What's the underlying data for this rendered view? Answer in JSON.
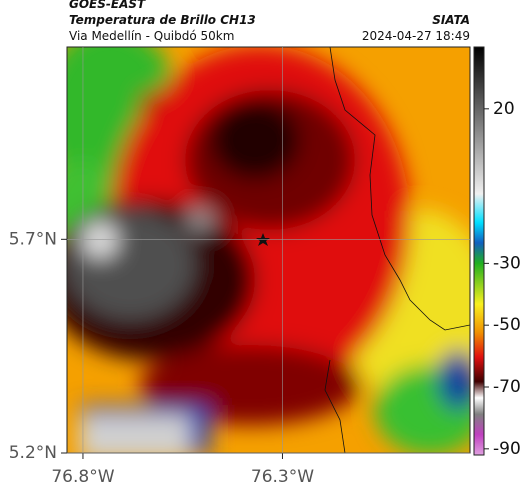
{
  "header": {
    "title": "GOES-EAST",
    "subtitle": "Temperatura de Brillo CH13",
    "caption": "Via Medellín - Quibdó 50km",
    "source": "SIATA",
    "timestamp": "2024-04-27 18:49"
  },
  "map": {
    "xlim": [
      -76.84,
      -75.83
    ],
    "ylim": [
      5.2,
      6.15
    ],
    "xticks": [
      {
        "value": -76.8,
        "label": "76.8°W"
      },
      {
        "value": -76.3,
        "label": "76.3°W"
      }
    ],
    "yticks": [
      {
        "value": 5.7,
        "label": "5.7°N"
      },
      {
        "value": 5.2,
        "label": "5.2°N"
      }
    ]
  },
  "colorbar": {
    "lim": [
      -92,
      40
    ],
    "ticks": [
      20,
      -30,
      -50,
      -70,
      -90
    ]
  }
}
